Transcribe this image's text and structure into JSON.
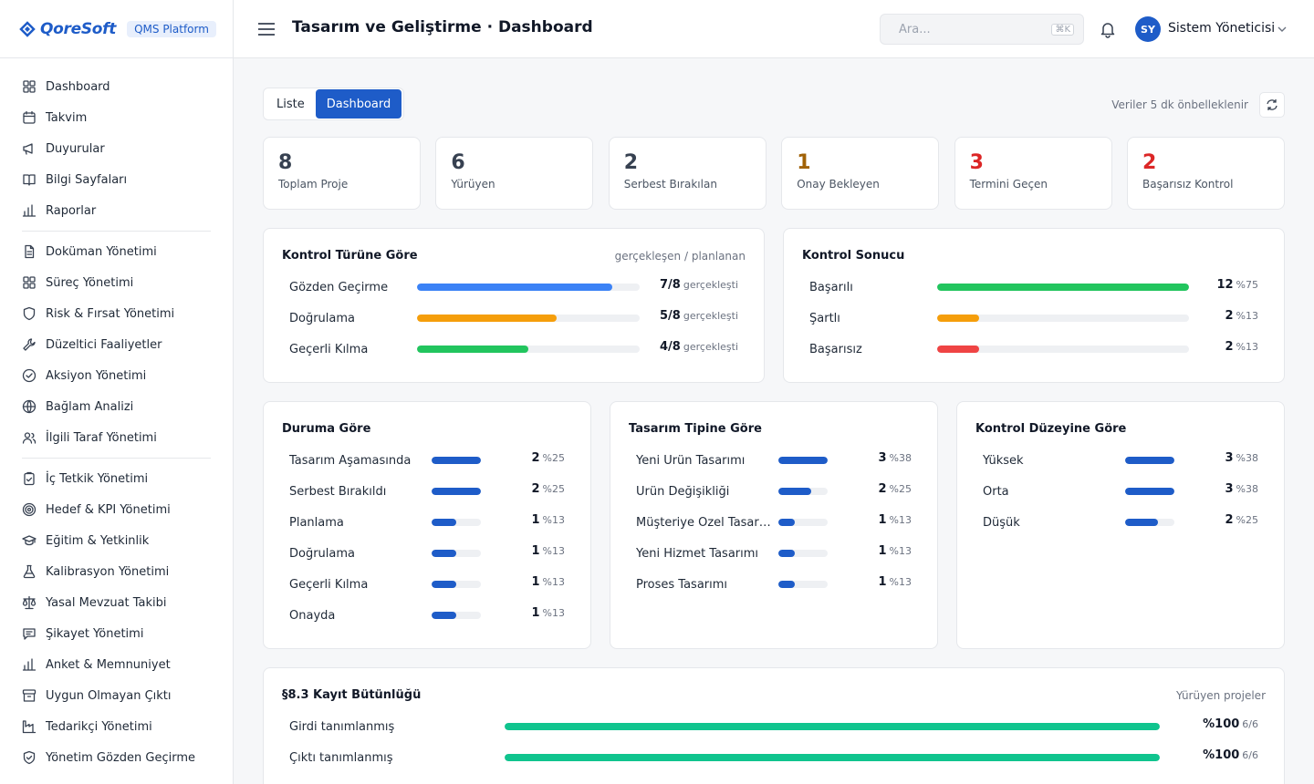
{
  "brand": {
    "name": "QoreSoft",
    "badge": "QMS Platform"
  },
  "sidebar": {
    "groups": [
      [
        {
          "label": "Dashboard",
          "icon": "grid-icon"
        },
        {
          "label": "Takvim",
          "icon": "calendar-icon"
        },
        {
          "label": "Duyurular",
          "icon": "megaphone-icon"
        },
        {
          "label": "Bilgi Sayfaları",
          "icon": "book-icon"
        },
        {
          "label": "Raporlar",
          "icon": "bar-chart-icon"
        }
      ],
      [
        {
          "label": "Doküman Yönetimi",
          "icon": "document-icon"
        },
        {
          "label": "Süreç Yönetimi",
          "icon": "grid-icon"
        },
        {
          "label": "Risk & Fırsat Yönetimi",
          "icon": "shield-icon"
        },
        {
          "label": "Düzeltici Faaliyetler",
          "icon": "wrench-icon"
        },
        {
          "label": "Aksiyon Yönetimi",
          "icon": "check-circle-icon"
        },
        {
          "label": "Bağlam Analizi",
          "icon": "globe-icon"
        },
        {
          "label": "İlgili Taraf Yönetimi",
          "icon": "users-icon"
        }
      ],
      [
        {
          "label": "İç Tetkik Yönetimi",
          "icon": "clipboard-icon"
        },
        {
          "label": "Hedef & KPI Yönetimi",
          "icon": "target-icon"
        },
        {
          "label": "Eğitim & Yetkinlik",
          "icon": "graduation-cap-icon"
        },
        {
          "label": "Kalibrasyon Yönetimi",
          "icon": "flask-icon"
        },
        {
          "label": "Yasal Mevzuat Takibi",
          "icon": "scale-icon"
        },
        {
          "label": "Şikayet Yönetimi",
          "icon": "message-icon"
        },
        {
          "label": "Anket & Memnuniyet",
          "icon": "bar-chart-icon"
        },
        {
          "label": "Uygun Olmayan Çıktı",
          "icon": "archive-icon"
        },
        {
          "label": "Tedarikçi Yönetimi",
          "icon": "factory-icon"
        },
        {
          "label": "Yönetim Gözden Geçirme",
          "icon": "shield-check-icon"
        }
      ]
    ]
  },
  "header": {
    "title": "Tasarım ve Geliştirme · Dashboard",
    "search_placeholder": "Ara...",
    "search_shortcut": "⌘K",
    "user_initials": "SY",
    "user_name": "Sistem Yöneticisi"
  },
  "toolbar": {
    "tabs": [
      "Liste",
      "Dashboard"
    ],
    "active_tab": "Dashboard",
    "cache_note": "Veriler 5 dk önbelleklenir"
  },
  "kpis": [
    {
      "value": "8",
      "label": "Toplam Proje",
      "color": "#374151"
    },
    {
      "value": "6",
      "label": "Yürüyen",
      "color": "#374151"
    },
    {
      "value": "2",
      "label": "Serbest Bırakılan",
      "color": "#374151"
    },
    {
      "value": "1",
      "label": "Onay Bekleyen",
      "color": "#a16207"
    },
    {
      "value": "3",
      "label": "Termini Geçen",
      "color": "#dc2626"
    },
    {
      "value": "2",
      "label": "Başarısız Kontrol",
      "color": "#dc2626"
    }
  ],
  "control_type": {
    "title": "Kontrol Türüne Göre",
    "subtitle": "gerçekleşen / planlanan",
    "rows": [
      {
        "label": "Gözden Geçirme",
        "value": "7/8",
        "suffix": "gerçekleşti",
        "fraction": 0.875,
        "color": "#3b82f6"
      },
      {
        "label": "Doğrulama",
        "value": "5/8",
        "suffix": "gerçekleşti",
        "fraction": 0.625,
        "color": "#f59e0b"
      },
      {
        "label": "Geçerli Kılma",
        "value": "4/8",
        "suffix": "gerçekleşti",
        "fraction": 0.5,
        "color": "#22c55e"
      }
    ]
  },
  "control_result": {
    "title": "Kontrol Sonucu",
    "rows": [
      {
        "label": "Başarılı",
        "value": "12",
        "suffix": "%75",
        "fraction": 1.0,
        "color": "#22c55e"
      },
      {
        "label": "Şartlı",
        "value": "2",
        "suffix": "%13",
        "fraction": 0.167,
        "color": "#f59e0b"
      },
      {
        "label": "Başarısız",
        "value": "2",
        "suffix": "%13",
        "fraction": 0.167,
        "color": "#ef4444"
      }
    ]
  },
  "by_status": {
    "title": "Duruma Göre",
    "rows": [
      {
        "label": "Tasarım Aşamasında",
        "value": "2",
        "suffix": "%25",
        "fraction": 1.0
      },
      {
        "label": "Serbest Bırakıldı",
        "value": "2",
        "suffix": "%25",
        "fraction": 1.0
      },
      {
        "label": "Planlama",
        "value": "1",
        "suffix": "%13",
        "fraction": 0.5
      },
      {
        "label": "Doğrulama",
        "value": "1",
        "suffix": "%13",
        "fraction": 0.5
      },
      {
        "label": "Geçerli Kılma",
        "value": "1",
        "suffix": "%13",
        "fraction": 0.5
      },
      {
        "label": "Onayda",
        "value": "1",
        "suffix": "%13",
        "fraction": 0.5
      }
    ]
  },
  "by_design_type": {
    "title": "Tasarım Tipine Göre",
    "rows": [
      {
        "label": "Yeni Ürün Tasarımı",
        "value": "3",
        "suffix": "%38",
        "fraction": 1.0
      },
      {
        "label": "Ürün Değişikliği",
        "value": "2",
        "suffix": "%25",
        "fraction": 0.667
      },
      {
        "label": "Müşteriye Özel Tasarı...",
        "value": "1",
        "suffix": "%13",
        "fraction": 0.333
      },
      {
        "label": "Yeni Hizmet Tasarımı",
        "value": "1",
        "suffix": "%13",
        "fraction": 0.333
      },
      {
        "label": "Proses Tasarımı",
        "value": "1",
        "suffix": "%13",
        "fraction": 0.333
      }
    ]
  },
  "by_control_level": {
    "title": "Kontrol Düzeyine Göre",
    "rows": [
      {
        "label": "Yüksek",
        "value": "3",
        "suffix": "%38",
        "fraction": 1.0
      },
      {
        "label": "Orta",
        "value": "3",
        "suffix": "%38",
        "fraction": 1.0
      },
      {
        "label": "Düşük",
        "value": "2",
        "suffix": "%25",
        "fraction": 0.667
      }
    ]
  },
  "record_integrity": {
    "title": "§8.3 Kayıt Bütünlüğü",
    "subtitle": "Yürüyen projeler",
    "rows": [
      {
        "label": "Girdi tanımlanmış",
        "value": "%100",
        "suffix": "6/6",
        "fraction": 1.0
      },
      {
        "label": "Çıktı tanımlanmış",
        "value": "%100",
        "suffix": "6/6",
        "fraction": 1.0
      }
    ]
  },
  "colors": {
    "accent": "#1e5cc8",
    "teal": "#10c48e"
  }
}
